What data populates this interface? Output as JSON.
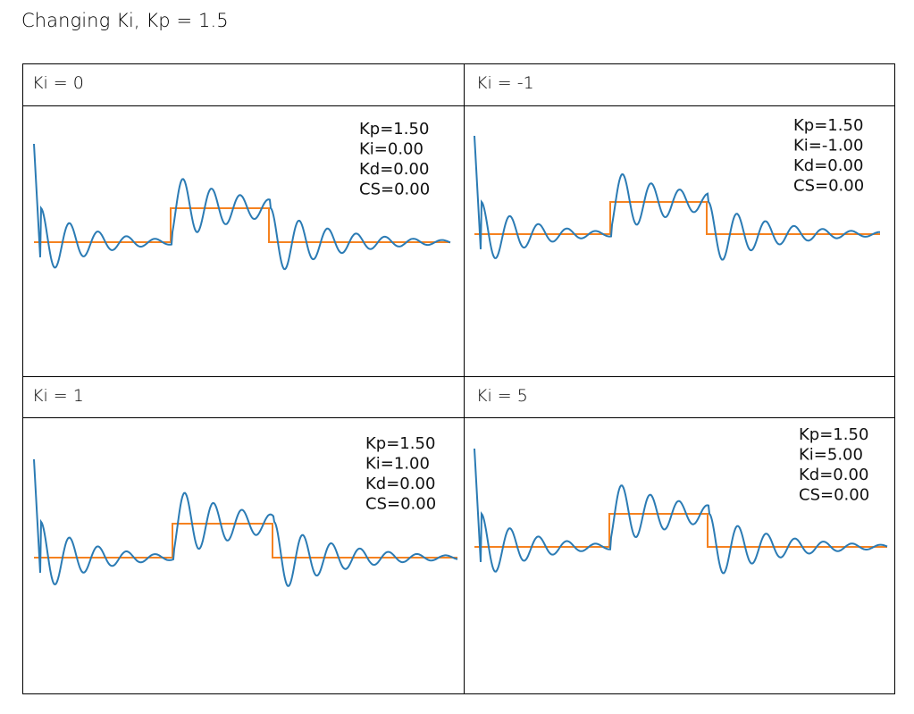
{
  "title": "Changing Ki, Kp = 1.5",
  "cells": [
    {
      "header": "Ki = 0",
      "annotation": [
        "Kp=1.50",
        "Ki=0.00",
        "Kd=0.00",
        "CS=0.00"
      ]
    },
    {
      "header": "Ki = -1",
      "annotation": [
        "Kp=1.50",
        "Ki=-1.00",
        "Kd=0.00",
        "CS=0.00"
      ]
    },
    {
      "header": "Ki = 1",
      "annotation": [
        "Kp=1.50",
        "Ki=1.00",
        "Kd=0.00",
        "CS=0.00"
      ]
    },
    {
      "header": "Ki = 5",
      "annotation": [
        "Kp=1.50",
        "Ki=5.00",
        "Kd=0.00",
        "CS=0.00"
      ]
    }
  ],
  "colors": {
    "response": "#2b7bb4",
    "setpoint": "#f58220"
  },
  "chart_data": [
    {
      "type": "line",
      "series": [
        {
          "values": [
            0,
            1,
            0
          ]
        },
        {}
      ],
      "ki": 0
    },
    {
      "type": "line",
      "ki": -1
    },
    {
      "type": "line",
      "ki": 1
    },
    {
      "type": "line",
      "ki": 5
    }
  ]
}
